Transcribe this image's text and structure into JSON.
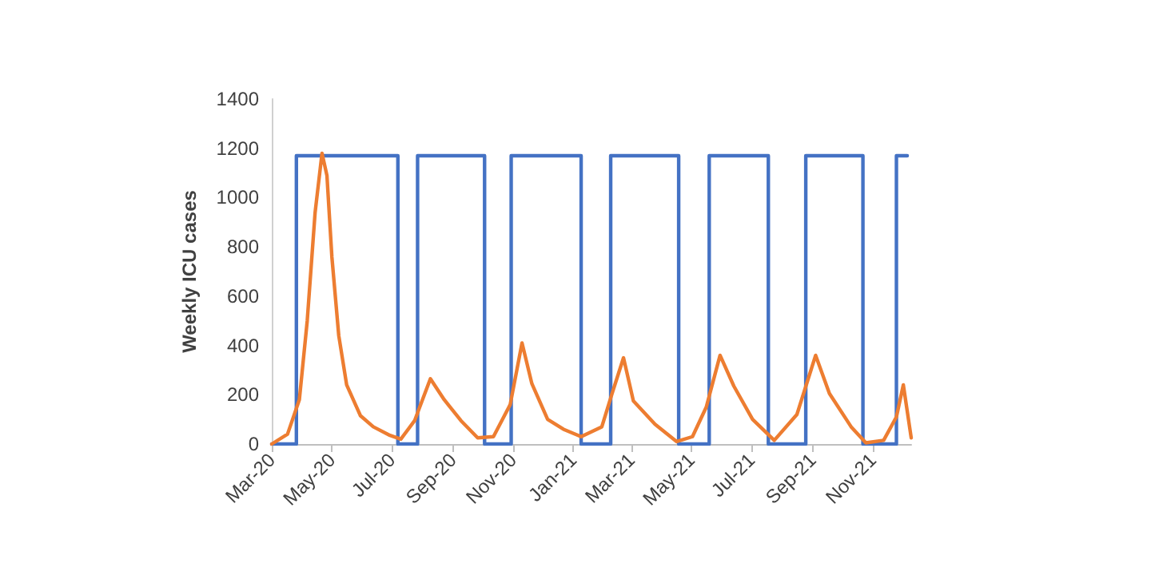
{
  "chart_data": {
    "type": "line",
    "ylabel": "Weekly ICU cases",
    "xlim": [
      "2020-03-01",
      "2021-12-10"
    ],
    "xticks": [
      {
        "value": "2020-03-01",
        "label": "Mar-20"
      },
      {
        "value": "2020-05-01",
        "label": "May-20"
      },
      {
        "value": "2020-07-01",
        "label": "Jul-20"
      },
      {
        "value": "2020-09-01",
        "label": "Sep-20"
      },
      {
        "value": "2020-11-01",
        "label": "Nov-20"
      },
      {
        "value": "2021-01-01",
        "label": "Jan-21"
      },
      {
        "value": "2021-03-01",
        "label": "Mar-21"
      },
      {
        "value": "2021-05-01",
        "label": "May-21"
      },
      {
        "value": "2021-07-01",
        "label": "Jul-21"
      },
      {
        "value": "2021-09-01",
        "label": "Sep-21"
      },
      {
        "value": "2021-11-01",
        "label": "Nov-21"
      }
    ],
    "ylim": [
      0,
      1400
    ],
    "yticks": [
      0,
      200,
      400,
      600,
      800,
      1000,
      1200,
      1400
    ],
    "grid": false,
    "marker": "none",
    "line_style": "solid",
    "series": [
      {
        "type": "step",
        "color": "#4472c4",
        "x": [
          "2020-03-01",
          "2020-03-26",
          "2020-07-07",
          "2020-07-27",
          "2020-10-03",
          "2020-10-30",
          "2021-01-09",
          "2021-02-08",
          "2021-04-18",
          "2021-05-19",
          "2021-07-18",
          "2021-08-25",
          "2021-10-22",
          "2021-11-25",
          "2021-12-06"
        ],
        "values": [
          0,
          1170,
          0,
          1170,
          0,
          1170,
          0,
          1170,
          0,
          1170,
          0,
          1170,
          0,
          1170,
          1170
        ]
      },
      {
        "color": "#ed7d31",
        "x": [
          "2020-03-01",
          "2020-03-17",
          "2020-03-29",
          "2020-04-06",
          "2020-04-14",
          "2020-04-21",
          "2020-04-26",
          "2020-05-01",
          "2020-05-08",
          "2020-05-16",
          "2020-05-30",
          "2020-06-12",
          "2020-06-29",
          "2020-07-10",
          "2020-07-24",
          "2020-08-09",
          "2020-08-23",
          "2020-09-09",
          "2020-09-26",
          "2020-10-12",
          "2020-10-29",
          "2020-11-10",
          "2020-11-20",
          "2020-12-06",
          "2020-12-22",
          "2021-01-09",
          "2021-01-30",
          "2021-02-09",
          "2021-02-21",
          "2021-03-03",
          "2021-03-25",
          "2021-04-16",
          "2021-05-02",
          "2021-05-16",
          "2021-05-30",
          "2021-06-13",
          "2021-07-02",
          "2021-07-24",
          "2021-08-16",
          "2021-09-04",
          "2021-09-18",
          "2021-10-10",
          "2021-10-25",
          "2021-11-12",
          "2021-11-25",
          "2021-12-02",
          "2021-12-10"
        ],
        "values": [
          0,
          40,
          180,
          500,
          940,
          1180,
          1090,
          760,
          440,
          240,
          115,
          70,
          35,
          20,
          95,
          265,
          180,
          95,
          25,
          30,
          160,
          410,
          245,
          100,
          60,
          30,
          70,
          200,
          350,
          175,
          80,
          10,
          30,
          150,
          360,
          235,
          100,
          15,
          120,
          360,
          205,
          70,
          5,
          15,
          110,
          240,
          25
        ]
      }
    ]
  }
}
